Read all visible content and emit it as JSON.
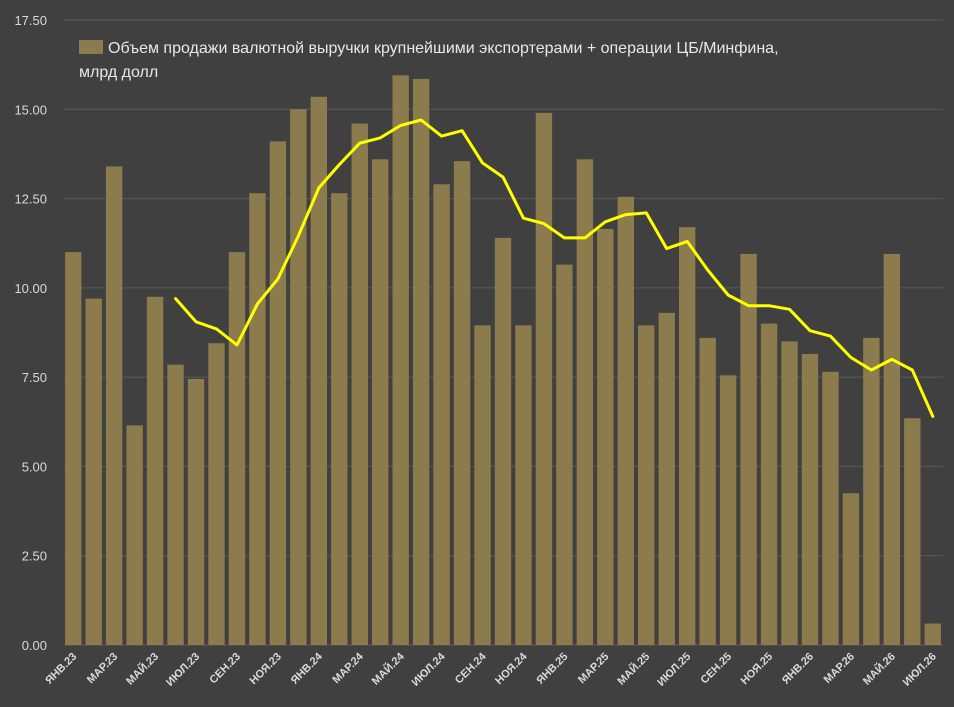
{
  "chart_data": {
    "type": "bar",
    "legend": {
      "line1": "Объем продажи  валютной выручки крупнейшими экспортерами + операции ЦБ/Минфина,",
      "line2": "млрд долл",
      "placement": "top-left"
    },
    "ylim": [
      0,
      17.5
    ],
    "yticks": [
      "0.00",
      "2.50",
      "5.00",
      "7.50",
      "10.00",
      "12.50",
      "15.00",
      "17.50"
    ],
    "ytick_values": [
      0,
      2.5,
      5,
      7.5,
      10,
      12.5,
      15,
      17.5
    ],
    "grid": true,
    "colors": {
      "bar": "#8c7b4d",
      "line": "#ffff00",
      "background": "#404040",
      "grid": "#5a5a5a"
    },
    "x_tick_labels": [
      "ЯНВ.23",
      "МАР.23",
      "МАЙ.23",
      "ИЮЛ.23",
      "СЕН.23",
      "НОЯ.23",
      "ЯНВ.24",
      "МАР.24",
      "МАЙ.24",
      "ИЮЛ.24",
      "СЕН.24",
      "НОЯ.24",
      "ЯНВ.25",
      "МАР.25",
      "МАЙ.25",
      "ИЮЛ.25",
      "СЕН.25",
      "НОЯ.25",
      "ЯНВ.26",
      "МАР.26",
      "МАЙ.26",
      "ИЮЛ.26"
    ],
    "bar_values": [
      11.0,
      9.7,
      13.4,
      6.15,
      9.75,
      7.85,
      7.45,
      8.45,
      11.0,
      12.65,
      14.1,
      15.0,
      15.35,
      12.65,
      14.6,
      13.6,
      15.95,
      15.85,
      12.9,
      13.55,
      8.95,
      11.4,
      8.95,
      14.9,
      10.65,
      13.6,
      11.65,
      12.55,
      8.95,
      9.3,
      11.7,
      8.6,
      7.55,
      10.95,
      9.0,
      8.5,
      8.15,
      7.65,
      4.25,
      8.6,
      10.95,
      6.35,
      0.6
    ],
    "line_values": [
      null,
      null,
      null,
      null,
      null,
      9.7,
      9.05,
      8.85,
      8.4,
      9.55,
      10.25,
      11.45,
      12.8,
      13.45,
      14.05,
      14.2,
      14.55,
      14.7,
      14.25,
      14.4,
      13.5,
      13.1,
      11.95,
      11.8,
      11.4,
      11.4,
      11.85,
      12.05,
      12.1,
      11.1,
      11.3,
      10.5,
      9.8,
      9.5,
      9.5,
      9.4,
      8.8,
      8.65,
      8.05,
      7.7,
      8.0,
      7.7,
      6.4
    ]
  }
}
